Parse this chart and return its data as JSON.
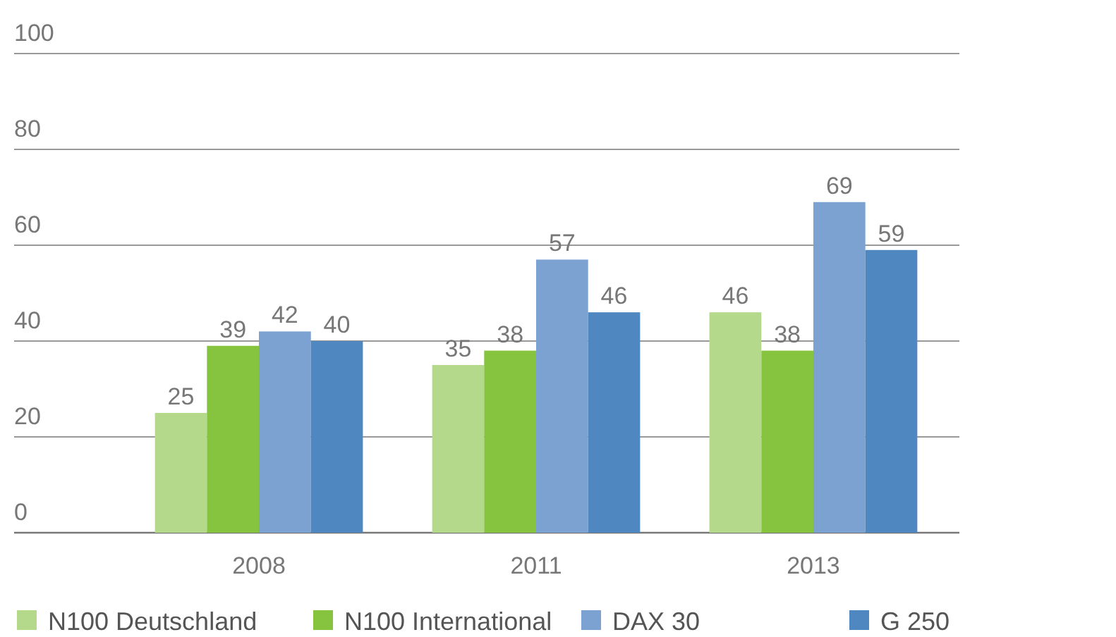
{
  "chart_data": {
    "type": "bar",
    "categories": [
      "2008",
      "2011",
      "2013"
    ],
    "series": [
      {
        "name": "N100 Deutschland",
        "color": "#b5d98a",
        "values": [
          25,
          35,
          46
        ]
      },
      {
        "name": "N100 International",
        "color": "#86c440",
        "values": [
          39,
          38,
          38
        ]
      },
      {
        "name": "DAX 30",
        "color": "#7ba2d0",
        "values": [
          42,
          57,
          69
        ]
      },
      {
        "name": "G 250",
        "color": "#4f87c0",
        "values": [
          40,
          46,
          59
        ]
      }
    ],
    "ylim": [
      0,
      100
    ],
    "yticks": [
      0,
      20,
      40,
      60,
      80,
      100
    ],
    "grid": "y",
    "legend": "bottom",
    "data_labels": true
  }
}
